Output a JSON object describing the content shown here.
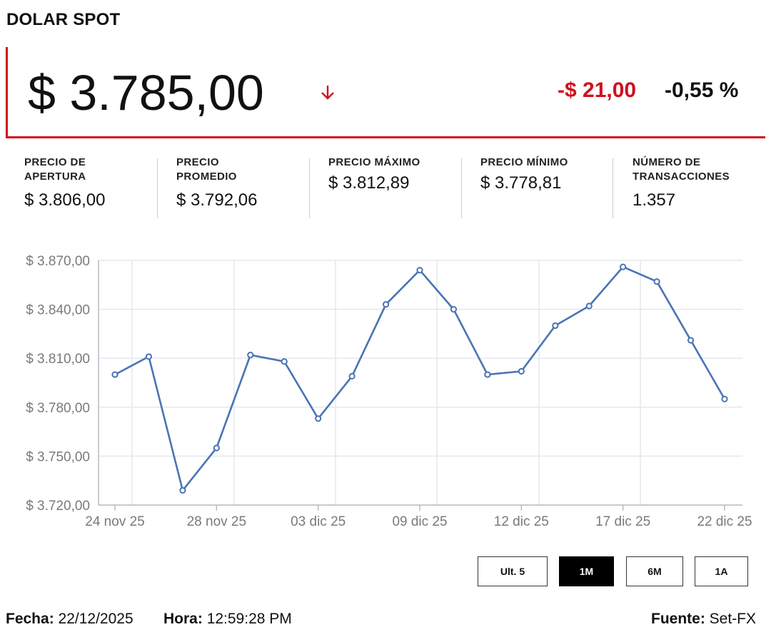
{
  "header": {
    "title": "DOLAR SPOT"
  },
  "price": {
    "current": "$ 3.785,00",
    "direction_icon": "arrow-down-icon",
    "change_abs": "-$ 21,00",
    "change_pct": "-0,55 %"
  },
  "stats": [
    {
      "label": "PRECIO DE APERTURA",
      "value": "$ 3.806,00"
    },
    {
      "label": "PRECIO PROMEDIO",
      "value": "$ 3.792,06"
    },
    {
      "label": "PRECIO MÁXIMO",
      "value": "$ 3.812,89"
    },
    {
      "label": "PRECIO MÍNIMO",
      "value": "$ 3.778,81"
    },
    {
      "label": "NÚMERO DE TRANSACCIONES",
      "value": "1.357"
    }
  ],
  "chart_data": {
    "type": "line",
    "title": "",
    "xlabel": "",
    "ylabel": "",
    "ylim": [
      3720,
      3870
    ],
    "y_ticks": [
      3720,
      3750,
      3780,
      3810,
      3840,
      3870
    ],
    "y_tick_labels": [
      "$ 3.720,00",
      "$ 3.750,00",
      "$ 3.780,00",
      "$ 3.810,00",
      "$ 3.840,00",
      "$ 3.870,00"
    ],
    "x_tick_labels": [
      "24 nov 25",
      "28 nov 25",
      "03 dic 25",
      "09 dic 25",
      "12 dic 25",
      "17 dic 25",
      "22 dic 25"
    ],
    "x_tick_indices": [
      0,
      3,
      6,
      9,
      12,
      15,
      18
    ],
    "grid": true,
    "series": [
      {
        "values": [
          3800,
          3811,
          3729,
          3755,
          3812,
          3808,
          3773,
          3799,
          3843,
          3864,
          3840,
          3800,
          3802,
          3830,
          3842,
          3866,
          3857,
          3821,
          3785
        ]
      }
    ],
    "colors": {
      "line": "#4a74b4",
      "grid": "#e4e8ee",
      "axis": "#b8bcc4"
    }
  },
  "range_buttons": [
    {
      "label": "Ult. 5",
      "active": false
    },
    {
      "label": "1M",
      "active": true
    },
    {
      "label": "6M",
      "active": false
    },
    {
      "label": "1A",
      "active": false
    }
  ],
  "footer": {
    "date_label": "Fecha:",
    "date_value": "22/12/2025",
    "time_label": "Hora:",
    "time_value": "12:59:28 PM",
    "source_label": "Fuente:",
    "source_value": "Set-FX"
  },
  "colors": {
    "accent_red": "#d0101e",
    "line_blue": "#4a74b4"
  }
}
